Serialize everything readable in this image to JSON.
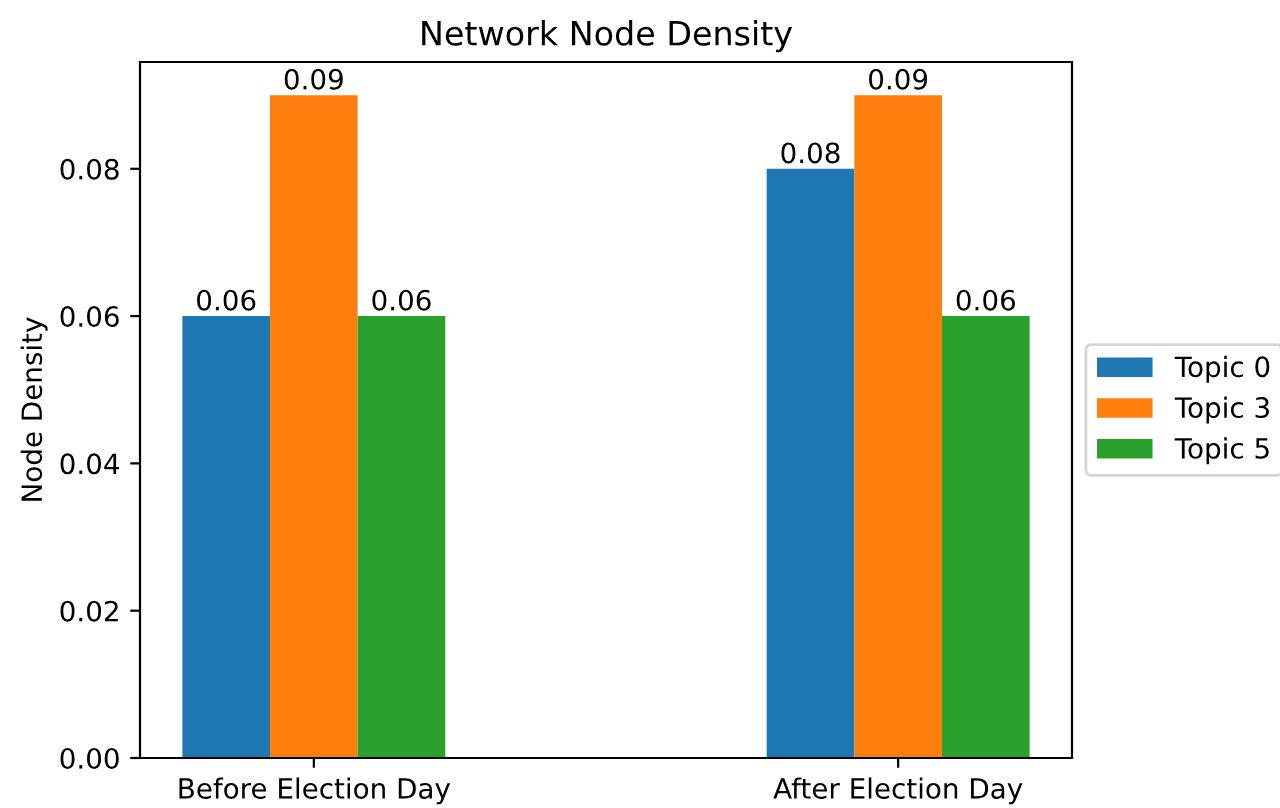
{
  "chart_data": {
    "type": "bar",
    "title": "Network Node Density",
    "ylabel": "Node Density",
    "categories": [
      "Before Election Day",
      "After Election Day"
    ],
    "series": [
      {
        "name": "Topic 0",
        "color": "#1f77b4",
        "values": [
          0.06,
          0.08
        ]
      },
      {
        "name": "Topic 3",
        "color": "#ff7f0e",
        "values": [
          0.09,
          0.09
        ]
      },
      {
        "name": "Topic 5",
        "color": "#2ca02c",
        "values": [
          0.06,
          0.06
        ]
      }
    ],
    "ylim": [
      0,
      0.0945
    ],
    "yticks": [
      {
        "value": 0,
        "label": "0.00"
      },
      {
        "value": 0.02,
        "label": "0.02"
      },
      {
        "value": 0.04,
        "label": "0.04"
      },
      {
        "value": 0.06,
        "label": "0.06"
      },
      {
        "value": 0.08,
        "label": "0.08"
      }
    ],
    "data_labels": true,
    "legend": "right",
    "grid": false
  }
}
